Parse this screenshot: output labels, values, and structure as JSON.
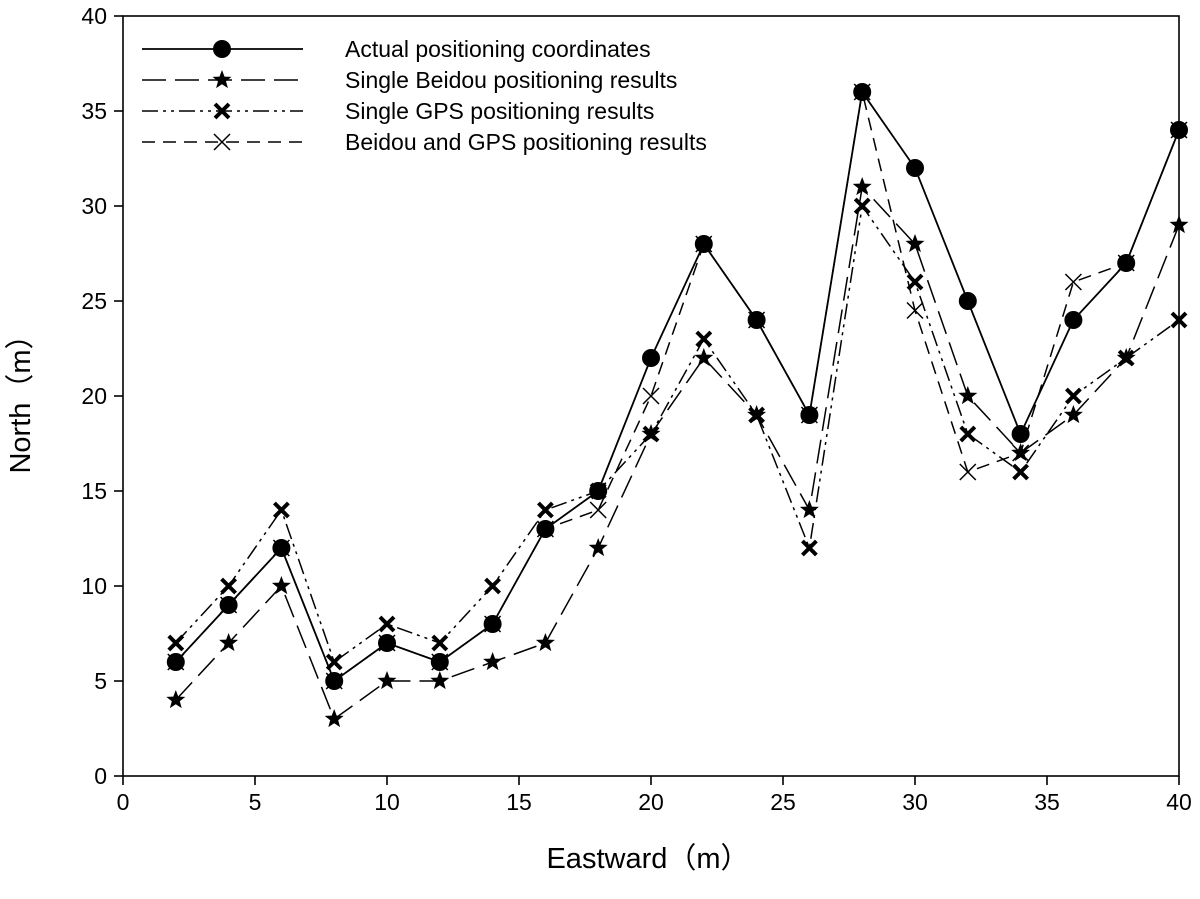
{
  "chart_data": {
    "type": "line",
    "xlabel": "Eastward（m）",
    "ylabel": "North（m）",
    "xlim": [
      0,
      40
    ],
    "ylim": [
      0,
      40
    ],
    "xticks": [
      0,
      5,
      10,
      15,
      20,
      25,
      30,
      35,
      40
    ],
    "yticks": [
      0,
      5,
      10,
      15,
      20,
      25,
      30,
      35,
      40
    ],
    "grid": false,
    "legend_position": "top-left",
    "x": [
      2,
      4,
      6,
      8,
      10,
      12,
      14,
      16,
      18,
      20,
      22,
      24,
      26,
      28,
      30,
      32,
      34,
      36,
      38,
      40
    ],
    "series": [
      {
        "name": "Actual positioning coordinates",
        "marker": "circle",
        "line": "solid",
        "values": [
          6,
          9,
          12,
          5,
          7,
          6,
          8,
          13,
          15,
          22,
          28,
          24,
          19,
          36,
          32,
          25,
          18,
          24,
          27,
          34
        ]
      },
      {
        "name": "Single Beidou positioning results",
        "marker": "star",
        "line": "long-dash",
        "values": [
          4,
          7,
          10,
          3,
          5,
          5,
          6,
          7,
          12,
          18,
          22,
          19,
          14,
          31,
          28,
          20,
          17,
          19,
          22,
          29
        ]
      },
      {
        "name": "Single GPS positioning results",
        "marker": "bold-x",
        "line": "dash-dot-dot",
        "values": [
          7,
          10,
          14,
          6,
          8,
          7,
          10,
          14,
          15,
          18,
          23,
          19,
          12,
          30,
          26,
          18,
          16,
          20,
          22,
          24
        ]
      },
      {
        "name": "Beidou and GPS positioning results",
        "marker": "thin-x",
        "line": "dash",
        "values": [
          6,
          9,
          12,
          5,
          7,
          6,
          8,
          13,
          14,
          20,
          28,
          24,
          19,
          36,
          24.5,
          16,
          17,
          26,
          27,
          34
        ]
      }
    ]
  }
}
